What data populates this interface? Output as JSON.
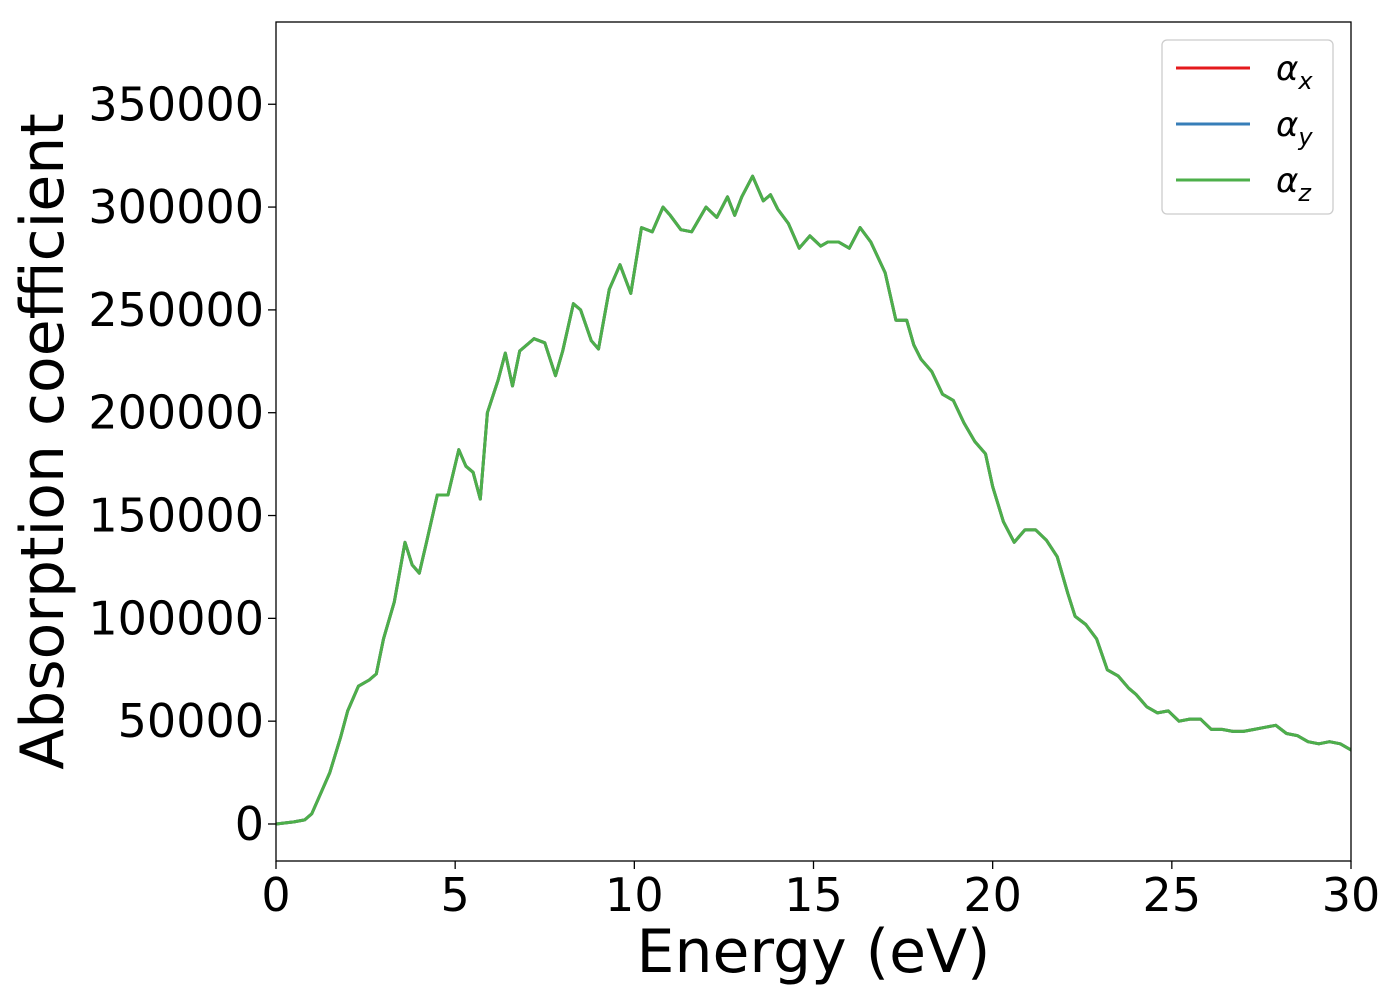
{
  "chart_data": {
    "type": "line",
    "xlabel": "Energy (eV)",
    "ylabel": "Absorption coefficient",
    "xlim": [
      0,
      30
    ],
    "ylim": [
      -18000,
      390000
    ],
    "xticks": [
      "0",
      "5",
      "10",
      "15",
      "20",
      "25",
      "30"
    ],
    "xtick_values": [
      0,
      5,
      10,
      15,
      20,
      25,
      30
    ],
    "yticks": [
      "0",
      "50000",
      "100000",
      "150000",
      "200000",
      "250000",
      "300000",
      "350000"
    ],
    "ytick_values": [
      0,
      50000,
      100000,
      150000,
      200000,
      250000,
      300000,
      350000
    ],
    "grid": false,
    "legend_position": "top-right",
    "x": [
      0,
      0.5,
      0.8,
      1.0,
      1.2,
      1.5,
      1.8,
      2.0,
      2.3,
      2.6,
      2.8,
      3.0,
      3.3,
      3.6,
      3.8,
      4.0,
      4.2,
      4.5,
      4.8,
      5.1,
      5.3,
      5.5,
      5.7,
      5.9,
      6.2,
      6.4,
      6.6,
      6.8,
      7.2,
      7.5,
      7.8,
      8.0,
      8.3,
      8.5,
      8.8,
      9.0,
      9.3,
      9.6,
      9.9,
      10.2,
      10.5,
      10.8,
      11.0,
      11.3,
      11.6,
      12.0,
      12.3,
      12.6,
      12.8,
      13.0,
      13.3,
      13.6,
      13.8,
      14.0,
      14.3,
      14.6,
      14.9,
      15.2,
      15.4,
      15.7,
      16.0,
      16.3,
      16.6,
      17.0,
      17.3,
      17.6,
      17.8,
      18.0,
      18.3,
      18.6,
      18.9,
      19.2,
      19.5,
      19.8,
      20.0,
      20.3,
      20.6,
      20.9,
      21.2,
      21.5,
      21.8,
      22.1,
      22.3,
      22.6,
      22.9,
      23.2,
      23.5,
      23.8,
      24.0,
      24.3,
      24.6,
      24.9,
      25.2,
      25.5,
      25.8,
      26.1,
      26.4,
      26.7,
      27.0,
      27.3,
      27.6,
      27.9,
      28.2,
      28.5,
      28.8,
      29.1,
      29.4,
      29.7,
      30.0
    ],
    "series": [
      {
        "name": "α_x",
        "color": "#e41a1c",
        "values": [
          0,
          1000,
          2000,
          5000,
          13000,
          25000,
          42000,
          55000,
          67000,
          70000,
          73000,
          90000,
          108000,
          137000,
          126000,
          122000,
          137000,
          160000,
          160000,
          182000,
          174000,
          171000,
          158000,
          200000,
          216000,
          229000,
          213000,
          230000,
          236000,
          234000,
          218000,
          230000,
          253000,
          250000,
          235000,
          231000,
          260000,
          272000,
          258000,
          290000,
          288000,
          300000,
          296000,
          289000,
          288000,
          300000,
          295000,
          305000,
          296000,
          305000,
          315000,
          303000,
          306000,
          299000,
          292000,
          280000,
          286000,
          281000,
          283000,
          283000,
          280000,
          290000,
          283000,
          268000,
          245000,
          245000,
          233000,
          226000,
          220000,
          209000,
          206000,
          195000,
          186000,
          180000,
          164000,
          147000,
          137000,
          143000,
          143000,
          138000,
          130000,
          112000,
          101000,
          97000,
          90000,
          75000,
          72000,
          66000,
          63000,
          57000,
          54000,
          55000,
          50000,
          51000,
          51000,
          46000,
          46000,
          45000,
          45000,
          46000,
          47000,
          48000,
          44000,
          43000,
          40000,
          39000,
          40000,
          39000,
          36000
        ]
      },
      {
        "name": "α_y",
        "color": "#377eb8",
        "values": [
          0,
          1000,
          2000,
          5000,
          13000,
          25000,
          42000,
          55000,
          67000,
          70000,
          73000,
          90000,
          108000,
          137000,
          126000,
          122000,
          137000,
          160000,
          160000,
          182000,
          174000,
          171000,
          158000,
          200000,
          216000,
          229000,
          213000,
          230000,
          236000,
          234000,
          218000,
          230000,
          253000,
          250000,
          235000,
          231000,
          260000,
          272000,
          258000,
          290000,
          288000,
          300000,
          296000,
          289000,
          288000,
          300000,
          295000,
          305000,
          296000,
          305000,
          315000,
          303000,
          306000,
          299000,
          292000,
          280000,
          286000,
          281000,
          283000,
          283000,
          280000,
          290000,
          283000,
          268000,
          245000,
          245000,
          233000,
          226000,
          220000,
          209000,
          206000,
          195000,
          186000,
          180000,
          164000,
          147000,
          137000,
          143000,
          143000,
          138000,
          130000,
          112000,
          101000,
          97000,
          90000,
          75000,
          72000,
          66000,
          63000,
          57000,
          54000,
          55000,
          50000,
          51000,
          51000,
          46000,
          46000,
          45000,
          45000,
          46000,
          47000,
          48000,
          44000,
          43000,
          40000,
          39000,
          40000,
          39000,
          36000
        ]
      },
      {
        "name": "α_z",
        "color": "#4daf4a",
        "values": [
          0,
          1000,
          2000,
          5000,
          13000,
          25000,
          42000,
          55000,
          67000,
          70000,
          73000,
          90000,
          108000,
          137000,
          126000,
          122000,
          137000,
          160000,
          160000,
          182000,
          174000,
          171000,
          158000,
          200000,
          216000,
          229000,
          213000,
          230000,
          236000,
          234000,
          218000,
          230000,
          253000,
          250000,
          235000,
          231000,
          260000,
          272000,
          258000,
          290000,
          288000,
          300000,
          296000,
          289000,
          288000,
          300000,
          295000,
          305000,
          296000,
          305000,
          315000,
          303000,
          306000,
          299000,
          292000,
          280000,
          286000,
          281000,
          283000,
          283000,
          280000,
          290000,
          283000,
          268000,
          245000,
          245000,
          233000,
          226000,
          220000,
          209000,
          206000,
          195000,
          186000,
          180000,
          164000,
          147000,
          137000,
          143000,
          143000,
          138000,
          130000,
          112000,
          101000,
          97000,
          90000,
          75000,
          72000,
          66000,
          63000,
          57000,
          54000,
          55000,
          50000,
          51000,
          51000,
          46000,
          46000,
          45000,
          45000,
          46000,
          47000,
          48000,
          44000,
          43000,
          40000,
          39000,
          40000,
          39000,
          36000
        ]
      }
    ],
    "legend": [
      {
        "base": "α",
        "sub": "x",
        "color": "#e41a1c"
      },
      {
        "base": "α",
        "sub": "y",
        "color": "#377eb8"
      },
      {
        "base": "α",
        "sub": "z",
        "color": "#4daf4a"
      }
    ]
  }
}
